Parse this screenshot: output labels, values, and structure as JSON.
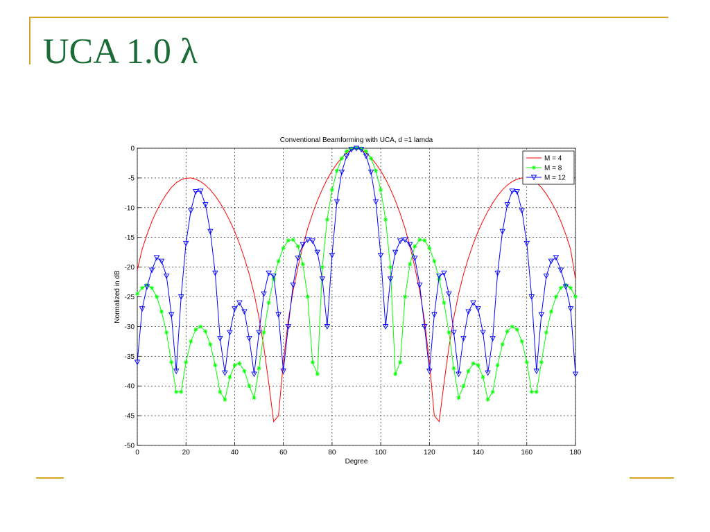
{
  "slide": {
    "title": "UCA 1.0 λ"
  },
  "chart_data": {
    "type": "line",
    "title": "Conventional Beamforming with UCA,  d =1 lamda",
    "xlabel": "Degree",
    "ylabel": "Normalized in dB",
    "x": [
      0,
      2,
      4,
      6,
      8,
      10,
      12,
      14,
      16,
      18,
      20,
      22,
      24,
      26,
      28,
      30,
      32,
      34,
      36,
      38,
      40,
      42,
      44,
      46,
      48,
      50,
      52,
      54,
      56,
      58,
      60,
      62,
      64,
      66,
      68,
      70,
      72,
      74,
      76,
      78,
      80,
      82,
      84,
      86,
      88,
      90,
      92,
      94,
      96,
      98,
      100,
      102,
      104,
      106,
      108,
      110,
      112,
      114,
      116,
      118,
      120,
      122,
      124,
      126,
      128,
      130,
      132,
      134,
      136,
      138,
      140,
      142,
      144,
      146,
      148,
      150,
      152,
      154,
      156,
      158,
      160,
      162,
      164,
      166,
      168,
      170,
      172,
      174,
      176,
      178,
      180
    ],
    "series": [
      {
        "name": "M = 4",
        "color": "#ff0000",
        "marker": "none",
        "values": [
          -20.5,
          -17,
          -14.5,
          -12.3,
          -10.5,
          -9,
          -7.7,
          -6.6,
          -5.8,
          -5.3,
          -5.05,
          -5,
          -5.2,
          -5.6,
          -6.2,
          -7,
          -8,
          -9.2,
          -10.6,
          -12.2,
          -14,
          -16.1,
          -18.5,
          -21.2,
          -24.5,
          -28.5,
          -33.5,
          -39.5,
          -46,
          -45,
          -36,
          -29,
          -24,
          -20,
          -16.5,
          -13.5,
          -11,
          -8.8,
          -6.9,
          -5.2,
          -3.8,
          -2.6,
          -1.6,
          -0.8,
          -0.25,
          0,
          -0.25,
          -0.8,
          -1.6,
          -2.6,
          -3.8,
          -5.2,
          -6.9,
          -8.8,
          -11,
          -13.5,
          -16.5,
          -20,
          -24,
          -29,
          -36,
          -45,
          -46,
          -39.5,
          -33.5,
          -28.5,
          -24.5,
          -21.2,
          -18.5,
          -16.1,
          -14,
          -12.2,
          -10.6,
          -9.2,
          -8,
          -7,
          -6.2,
          -5.6,
          -5.2,
          -5,
          -5.05,
          -5.3,
          -5.8,
          -6.6,
          -7.7,
          -9,
          -10.5,
          -12.3,
          -14.5,
          -17,
          -22
        ]
      },
      {
        "name": "M = 8",
        "color": "#00ff00",
        "marker": "star",
        "values": [
          -24.5,
          -23.5,
          -23,
          -23.5,
          -25,
          -27.5,
          -31,
          -36,
          -41,
          -41,
          -36,
          -32.5,
          -30.5,
          -30,
          -30.8,
          -33,
          -36.5,
          -41,
          -42.3,
          -38.5,
          -36.5,
          -36.2,
          -37.5,
          -40,
          -42,
          -37,
          -31,
          -26,
          -22,
          -19,
          -16.8,
          -15.5,
          -15.4,
          -16.5,
          -19.5,
          -25,
          -36,
          -38,
          -20,
          -12,
          -7,
          -3.8,
          -1.7,
          -0.5,
          -0.05,
          0,
          -0.05,
          -0.5,
          -1.7,
          -3.8,
          -7,
          -12,
          -20,
          -38,
          -36,
          -25,
          -19.5,
          -16.5,
          -15.4,
          -15.5,
          -16.8,
          -19,
          -22,
          -26,
          -31,
          -37,
          -42,
          -40,
          -37.5,
          -36.2,
          -36.5,
          -38.5,
          -42.3,
          -41,
          -36.5,
          -33,
          -30.8,
          -30,
          -30.5,
          -32.5,
          -36,
          -41,
          -41,
          -36,
          -31,
          -27.5,
          -25,
          -23.5,
          -23,
          -23.5,
          -25
        ]
      },
      {
        "name": "M = 12",
        "color": "#0000ff",
        "marker": "triangle-down",
        "values": [
          -36,
          -27,
          -23.3,
          -20.5,
          -18.4,
          -19,
          -21.5,
          -28,
          -37.5,
          -25,
          -16,
          -10.5,
          -7.3,
          -7.2,
          -9.5,
          -14,
          -21,
          -32,
          -37.8,
          -31,
          -27,
          -26,
          -27.5,
          -32,
          -38,
          -31,
          -24.5,
          -21,
          -21.5,
          -28,
          -37.5,
          -30,
          -23,
          -18.5,
          -16.2,
          -15.4,
          -15.6,
          -17.5,
          -22,
          -30,
          -18,
          -9,
          -4,
          -1.3,
          -0.2,
          0,
          -0.2,
          -1.3,
          -4,
          -9,
          -18,
          -30,
          -22,
          -17.5,
          -15.6,
          -15.4,
          -16.2,
          -18.5,
          -23,
          -30,
          -37.5,
          -28,
          -21.5,
          -21,
          -24.5,
          -31,
          -38,
          -32,
          -27.5,
          -26,
          -27,
          -31,
          -37.8,
          -32,
          -21,
          -14,
          -9.5,
          -7.2,
          -7.3,
          -10.5,
          -16,
          -25,
          -37.5,
          -28,
          -21.5,
          -19,
          -18.4,
          -20.5,
          -23.3,
          -27,
          -38
        ]
      }
    ],
    "xlim": [
      0,
      180
    ],
    "ylim": [
      -50,
      0
    ],
    "xticks": [
      0,
      20,
      40,
      60,
      80,
      100,
      120,
      140,
      160,
      180
    ],
    "yticks": [
      0,
      -5,
      -10,
      -15,
      -20,
      -25,
      -30,
      -35,
      -40,
      -45,
      -50
    ],
    "grid": true,
    "legend": "upper right"
  }
}
